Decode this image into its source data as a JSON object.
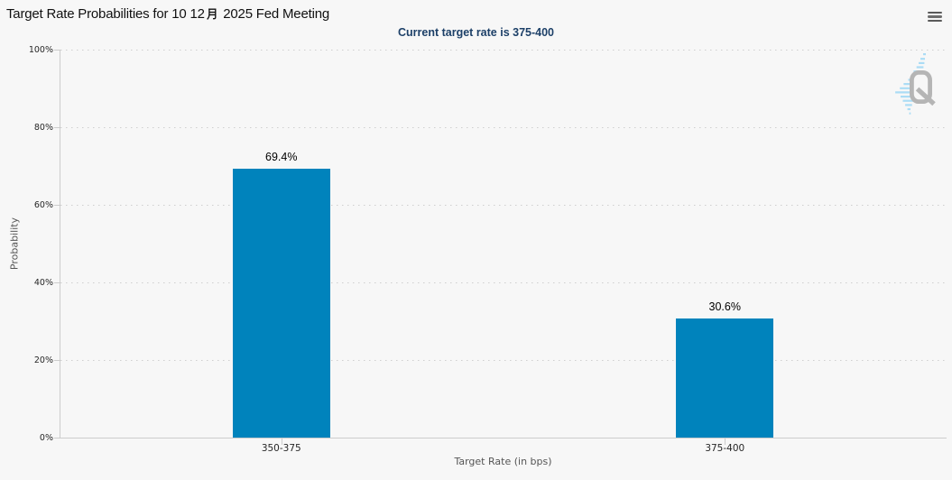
{
  "header": {
    "title": "Target Rate Probabilities for 10 12月 2025 Fed Meeting",
    "title_parts": {
      "before": "Target Rate Probabilities for 10 12",
      "cjk_month": "月",
      "after": " 2025 Fed Meeting"
    },
    "subtitle": "Current target rate is 375-400",
    "menu_icon": "hamburger-icon",
    "watermark_logo": "QuikStrike Q logo"
  },
  "chart_data": {
    "type": "bar",
    "title": "Target Rate Probabilities for 10 12月 2025 Fed Meeting",
    "subtitle": "Current target rate is 375-400",
    "categories": [
      "350-375",
      "375-400"
    ],
    "values": [
      69.4,
      30.6
    ],
    "value_labels": [
      "69.4%",
      "30.6%"
    ],
    "xlabel": "Target Rate (in bps)",
    "ylabel": "Probability",
    "ylim": [
      0,
      100
    ],
    "y_ticks": [
      "0%",
      "20%",
      "40%",
      "60%",
      "80%",
      "100%"
    ],
    "grid": "dotted horizontal gridlines",
    "legend": "none",
    "colors": {
      "bar": "#0083bc",
      "background": "#f7f7f7",
      "subtitle_text": "#1d4068",
      "axis_line": "#cccccc"
    }
  }
}
